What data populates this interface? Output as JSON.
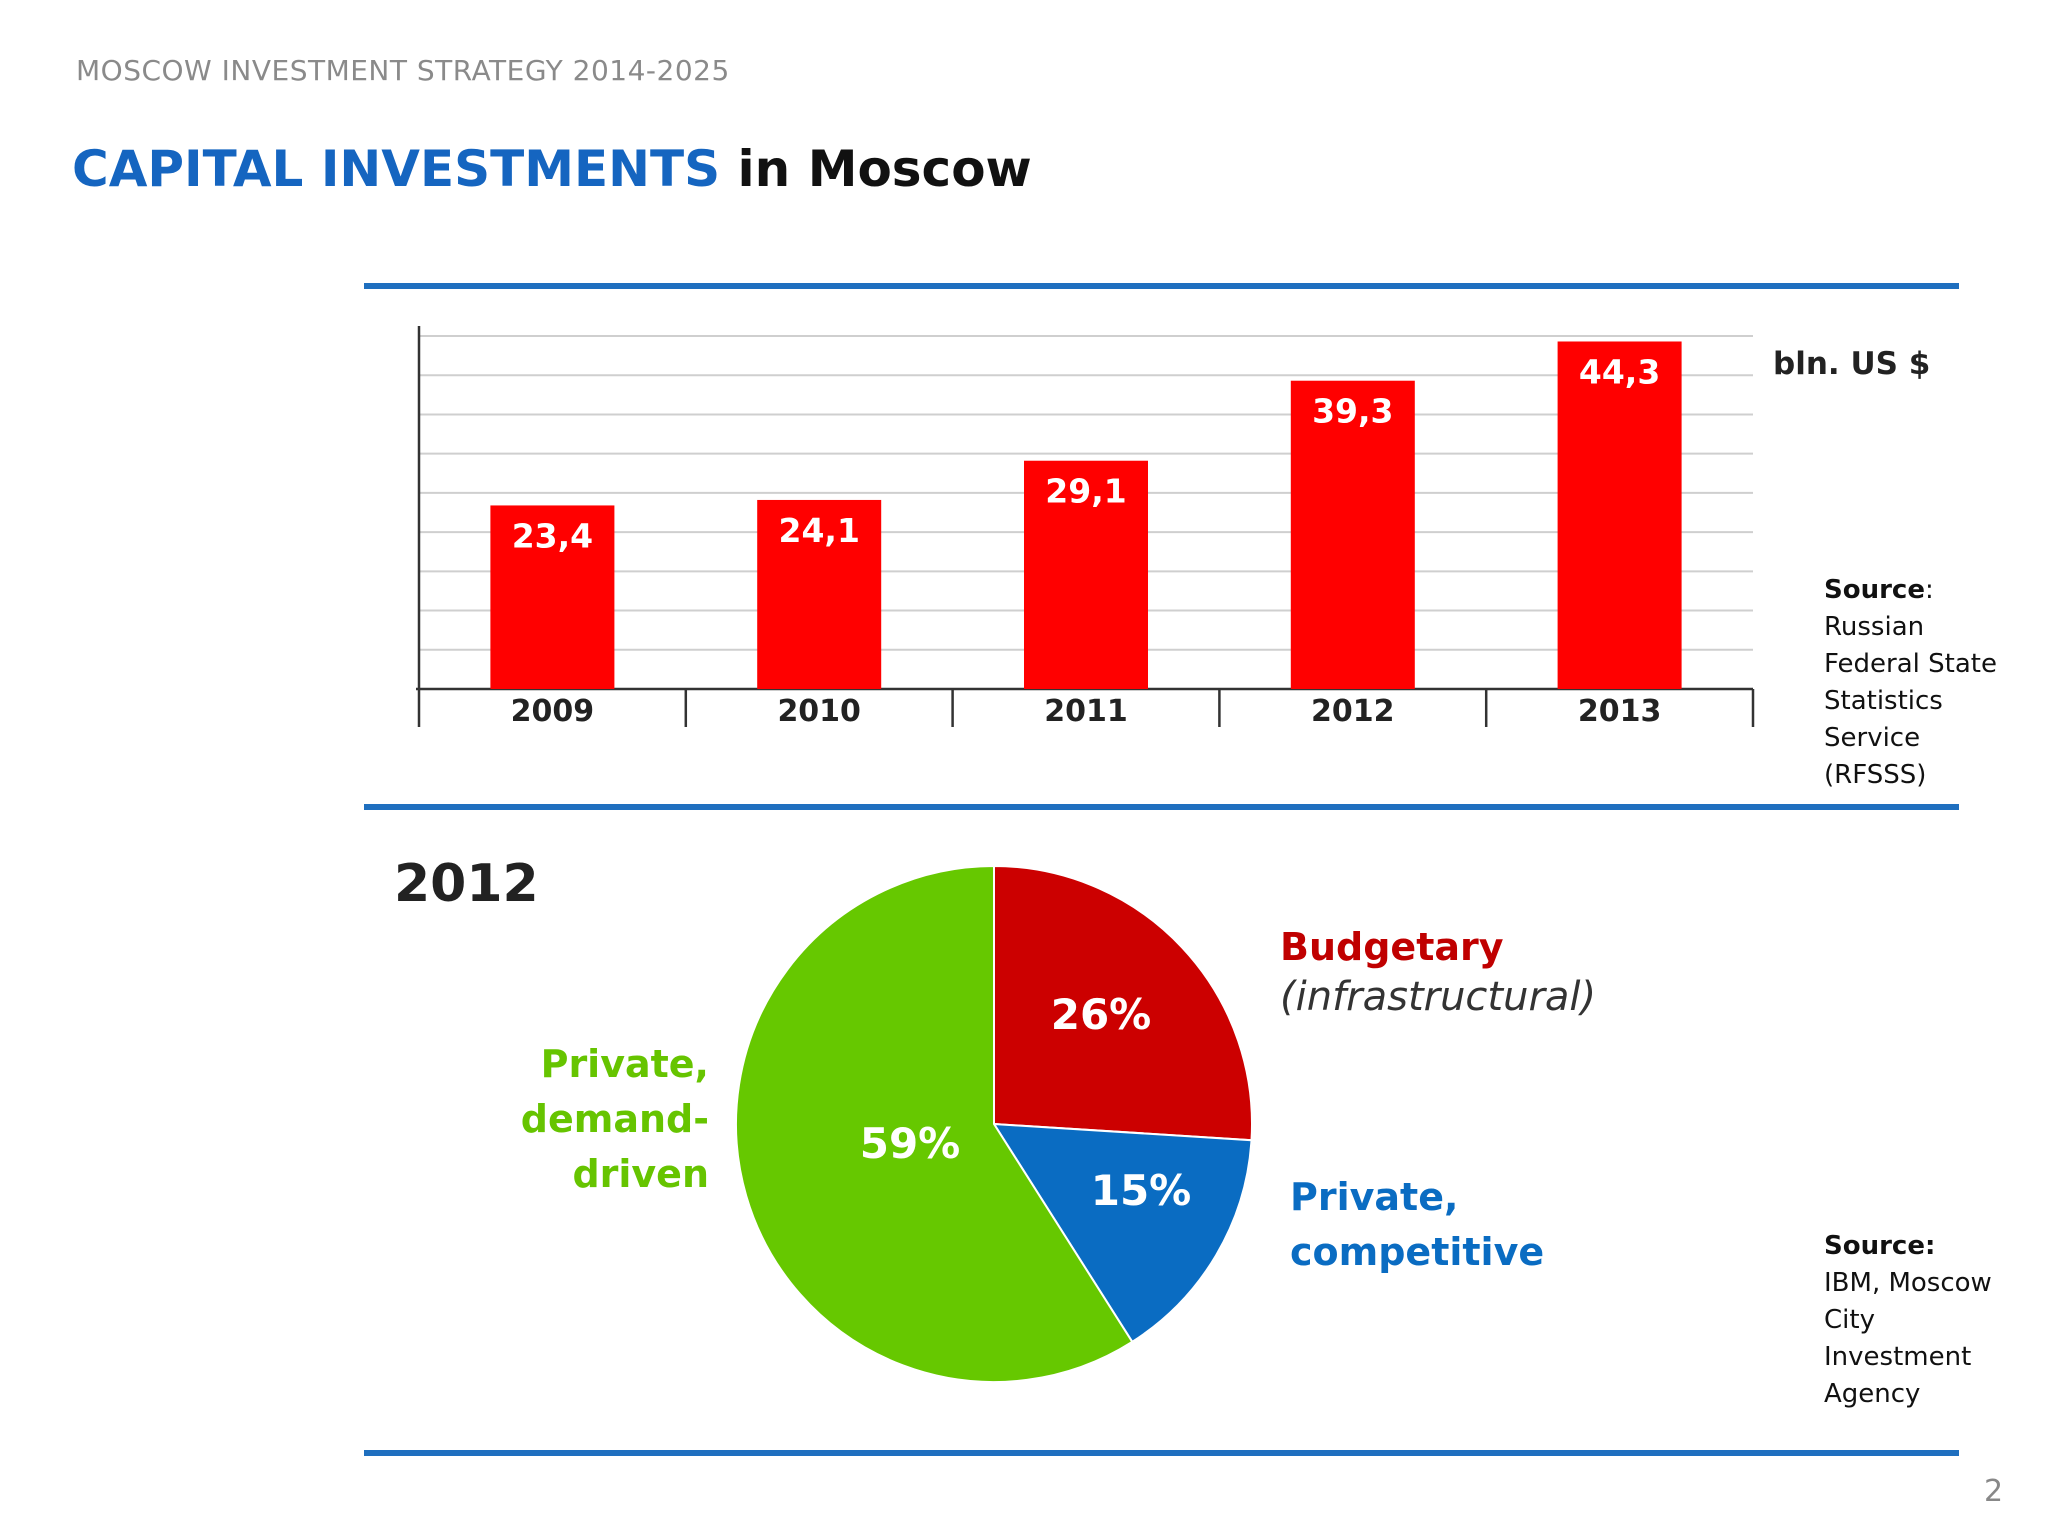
{
  "header": "MOSCOW INVESTMENT STRATEGY 2014-2025",
  "title": {
    "highlight": "CAPITAL INVESTMENTS",
    "rest": "in Moscow"
  },
  "unit_label": "bln. US $",
  "bar_source": {
    "label": "Source",
    "text": "Russian\nFederal State\nStatistics\nService\n(RFSSS)"
  },
  "pie_source": {
    "label": "Source:",
    "text": "IBM,  Moscow\nCity\nInvestment\nAgency"
  },
  "pie_year": "2012",
  "pie_labels": {
    "budgetary": "Budgetary",
    "budgetary_sub": "(infrastructural)",
    "private_demand": "Private,\ndemand-\ndriven",
    "private_competitive": "Private,\ncompetitive"
  },
  "page_number": "2",
  "colors": {
    "bar": "#ff0000",
    "budgetary": "#cc0000",
    "private_competitive": "#0a6cc2",
    "private_demand": "#66c800",
    "rule": "#1f6fbf"
  },
  "chart_data": [
    {
      "type": "bar",
      "categories": [
        "2009",
        "2010",
        "2011",
        "2012",
        "2013"
      ],
      "values": [
        23.4,
        24.1,
        29.1,
        39.3,
        44.3
      ],
      "value_labels": [
        "23,4",
        "24,1",
        "29,1",
        "39,3",
        "44,3"
      ],
      "ylabel": "bln. US $",
      "ylim": [
        0,
        45
      ],
      "grid": true
    },
    {
      "type": "pie",
      "title": "2012",
      "slices": [
        {
          "name": "Budgetary (infrastructural)",
          "value": 26,
          "label": "26%",
          "color": "#cc0000"
        },
        {
          "name": "Private, competitive",
          "value": 15,
          "label": "15%",
          "color": "#0a6cc2"
        },
        {
          "name": "Private, demand-driven",
          "value": 59,
          "label": "59%",
          "color": "#66c800"
        }
      ]
    }
  ]
}
